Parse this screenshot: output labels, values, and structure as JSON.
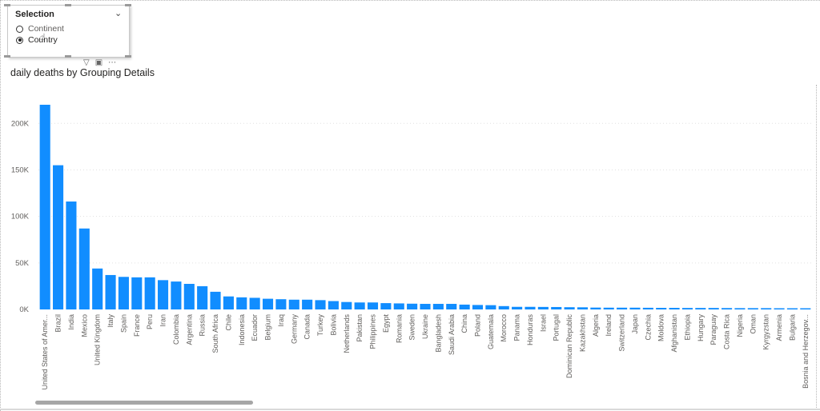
{
  "slicer": {
    "title": "Selection",
    "options": [
      {
        "label": "Continent",
        "selected": false
      },
      {
        "label": "Country",
        "selected": true
      }
    ]
  },
  "chart_data": {
    "type": "bar",
    "title": "daily deaths by Grouping Details",
    "bar_color": "#118DFF",
    "ylim": [
      0,
      220000
    ],
    "yticks": [
      0,
      50000,
      100000,
      150000,
      200000
    ],
    "ytick_labels": [
      "0K",
      "50K",
      "100K",
      "150K",
      "200K"
    ],
    "grid": true,
    "categories": [
      "United States of Amer...",
      "Brazil",
      "India",
      "Mexico",
      "United Kingdom",
      "Italy",
      "Spain",
      "France",
      "Peru",
      "Iran",
      "Colombia",
      "Argentina",
      "Russia",
      "South Africa",
      "Chile",
      "Indonesia",
      "Ecuador",
      "Belgium",
      "Iraq",
      "Germany",
      "Canada",
      "Turkey",
      "Bolivia",
      "Netherlands",
      "Pakistan",
      "Philippines",
      "Egypt",
      "Romania",
      "Sweden",
      "Ukraine",
      "Bangladesh",
      "Saudi Arabia",
      "China",
      "Poland",
      "Guatemala",
      "Morocco",
      "Panama",
      "Honduras",
      "Israel",
      "Portugal",
      "Dominican Republic",
      "Kazakhstan",
      "Algeria",
      "Ireland",
      "Switzerland",
      "Japan",
      "Czechia",
      "Moldova",
      "Afghanistan",
      "Ethiopia",
      "Hungary",
      "Paraguay",
      "Costa Rica",
      "Nigeria",
      "Oman",
      "Kyrgyzstan",
      "Armenia",
      "Bulgaria",
      "Bosnia and Herzegov..."
    ],
    "tick_labels": [
      "United States of Amer...",
      "Brazil",
      "India",
      "Mexico",
      "United Kingdom",
      "Italy",
      "Spain",
      "France",
      "Peru",
      "Iran",
      "Colombia",
      "Argentina",
      "Russia",
      "South Africa",
      "Chile",
      "Indonesia",
      "Ecuador",
      "Belgium",
      "Iraq",
      "Germany",
      "Canada",
      "Turkey",
      "Bolivia",
      "Netherlands",
      "Pakistan",
      "Philippines",
      "Egypt",
      "Romania",
      "Sweden",
      "Ukraine",
      "Bangladesh",
      "Saudi Arabia",
      "China",
      "Poland",
      "Guatemala",
      "Morocco",
      "Panama",
      "Honduras",
      "Israel",
      "Portugal",
      "Dominican Republic",
      "Kazakhstan",
      "Algeria",
      "Ireland",
      "Switzerland",
      "Japan",
      "Czechia",
      "Moldova",
      "Afghanistan",
      "Ethiopia",
      "Hungary",
      "Paraguay",
      "Costa Rica",
      "Nigeria",
      "Oman",
      "Kyrgyzstan",
      "Armenia",
      "Bulgaria",
      "Bosnia and Herzegov..."
    ],
    "values": [
      220000,
      155000,
      116000,
      87000,
      44000,
      37000,
      35000,
      34500,
      34500,
      31500,
      30000,
      27500,
      25000,
      19000,
      14000,
      13000,
      12500,
      11500,
      11000,
      10500,
      10500,
      10000,
      9000,
      8000,
      7500,
      7500,
      6800,
      6500,
      6200,
      6000,
      6000,
      6000,
      5200,
      4800,
      4600,
      3600,
      2800,
      2800,
      2700,
      2600,
      2400,
      2300,
      2000,
      1900,
      1900,
      1900,
      1800,
      1700,
      1700,
      1600,
      1600,
      1600,
      1500,
      1400,
      1400,
      1400,
      1300,
      1300,
      1300
    ]
  }
}
